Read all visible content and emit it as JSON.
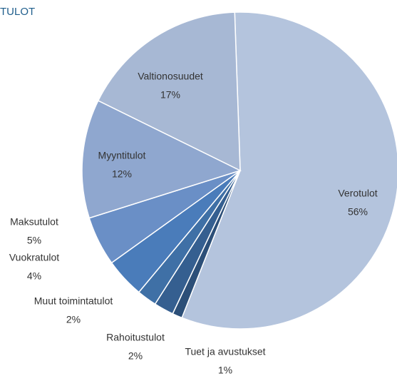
{
  "chart_data": {
    "type": "pie",
    "title": "TULOT",
    "categories": [
      "Verotulot",
      "Tuet ja avustukset",
      "Rahoitustulot",
      "Muut toimintatulot",
      "Vuokratulot",
      "Maksutulot",
      "Myyntitulot",
      "Valtionosuudet"
    ],
    "values": [
      56,
      1,
      2,
      2,
      4,
      5,
      12,
      17
    ],
    "value_labels": [
      "56%",
      "1%",
      "2%",
      "2%",
      "4%",
      "5%",
      "12%",
      "17%"
    ],
    "colors": [
      "#b4c4dd",
      "#2c4f78",
      "#355f90",
      "#3f70a6",
      "#4a7cba",
      "#6a8fc6",
      "#8fa7cf",
      "#a7b8d4"
    ]
  }
}
